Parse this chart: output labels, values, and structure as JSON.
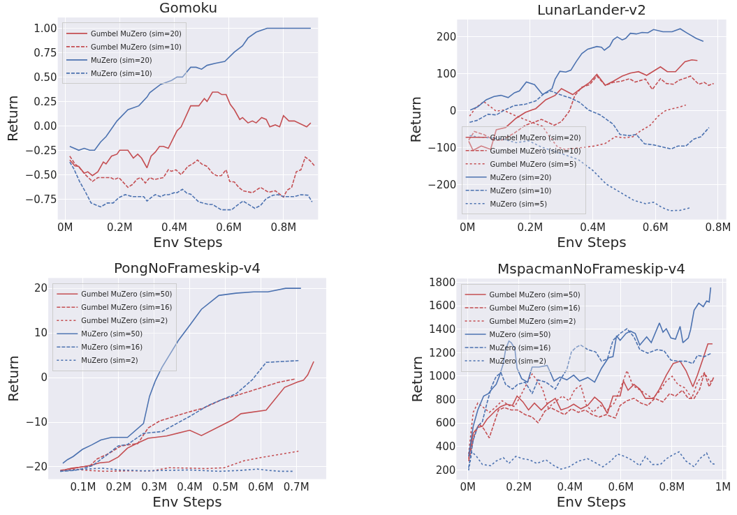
{
  "chart_data": [
    {
      "type": "line",
      "title": "Gomoku",
      "xlabel": "Env Steps",
      "ylabel": "Return",
      "grid": true,
      "legend": "top left",
      "xlim": [
        -0.027,
        0.927
      ],
      "ylim": [
        -0.96,
        1.11
      ],
      "xticks": [
        {
          "value": 0,
          "label": "0M"
        },
        {
          "value": 0.2,
          "label": "0.2M"
        },
        {
          "value": 0.4,
          "label": "0.4M"
        },
        {
          "value": 0.6,
          "label": "0.6M"
        },
        {
          "value": 0.8,
          "label": "0.8M"
        }
      ],
      "yticks": [
        {
          "value": -0.75,
          "label": "−0.75"
        },
        {
          "value": -0.5,
          "label": "−0.50"
        },
        {
          "value": -0.25,
          "label": "−0.25"
        },
        {
          "value": 0,
          "label": "0.00"
        },
        {
          "value": 0.25,
          "label": "0.25"
        },
        {
          "value": 0.5,
          "label": "0.50"
        },
        {
          "value": 0.75,
          "label": "0.75"
        },
        {
          "value": 1,
          "label": "1.00"
        }
      ],
      "series": [
        {
          "name": "Gumbel MuZero (sim=20)",
          "color": "#c44e52",
          "line_style": "solid",
          "x": [
            0.017,
            0.036,
            0.05,
            0.07,
            0.083,
            0.1,
            0.12,
            0.14,
            0.15,
            0.17,
            0.19,
            0.2,
            0.23,
            0.25,
            0.266,
            0.28,
            0.3,
            0.315,
            0.33,
            0.346,
            0.36,
            0.378,
            0.41,
            0.425,
            0.46,
            0.49,
            0.51,
            0.52,
            0.54,
            0.56,
            0.574,
            0.59,
            0.605,
            0.62,
            0.64,
            0.65,
            0.67,
            0.686,
            0.7,
            0.72,
            0.737,
            0.75,
            0.77,
            0.786,
            0.8,
            0.82,
            0.84,
            0.885,
            0.9
          ],
          "values": [
            -0.35,
            -0.41,
            -0.415,
            -0.485,
            -0.47,
            -0.51,
            -0.47,
            -0.37,
            -0.39,
            -0.31,
            -0.29,
            -0.25,
            -0.25,
            -0.33,
            -0.29,
            -0.33,
            -0.43,
            -0.31,
            -0.27,
            -0.21,
            -0.21,
            -0.23,
            -0.05,
            -0.01,
            0.205,
            0.205,
            0.28,
            0.25,
            0.345,
            0.345,
            0.32,
            0.32,
            0.22,
            0.165,
            0.065,
            0.085,
            0.03,
            0.05,
            0.03,
            0.085,
            0.065,
            -0.01,
            0.01,
            -0.01,
            0.105,
            0.05,
            0.05,
            -0.01,
            0.03
          ]
        },
        {
          "name": "Gumbel MuZero (sim=10)",
          "color": "#c44e52",
          "line_style": "dashed",
          "x": [
            0.017,
            0.036,
            0.053,
            0.074,
            0.1,
            0.12,
            0.167,
            0.18,
            0.197,
            0.23,
            0.247,
            0.264,
            0.277,
            0.294,
            0.31,
            0.327,
            0.36,
            0.378,
            0.39,
            0.406,
            0.425,
            0.45,
            0.467,
            0.485,
            0.5,
            0.52,
            0.54,
            0.555,
            0.572,
            0.59,
            0.603,
            0.62,
            0.636,
            0.652,
            0.686,
            0.716,
            0.745,
            0.77,
            0.8,
            0.813,
            0.83,
            0.847,
            0.864,
            0.88,
            0.897,
            0.914
          ],
          "values": [
            -0.31,
            -0.39,
            -0.43,
            -0.5,
            -0.57,
            -0.53,
            -0.53,
            -0.55,
            -0.53,
            -0.63,
            -0.6,
            -0.545,
            -0.53,
            -0.585,
            -0.53,
            -0.55,
            -0.53,
            -0.45,
            -0.465,
            -0.45,
            -0.5,
            -0.415,
            -0.39,
            -0.35,
            -0.39,
            -0.415,
            -0.485,
            -0.51,
            -0.51,
            -0.45,
            -0.57,
            -0.575,
            -0.63,
            -0.665,
            -0.685,
            -0.63,
            -0.68,
            -0.665,
            -0.73,
            -0.66,
            -0.63,
            -0.47,
            -0.45,
            -0.32,
            -0.355,
            -0.41
          ]
        },
        {
          "name": "MuZero (sim=20)",
          "color": "#4c72b0",
          "line_style": "solid",
          "x": [
            0.017,
            0.05,
            0.07,
            0.09,
            0.108,
            0.13,
            0.15,
            0.19,
            0.23,
            0.27,
            0.3,
            0.31,
            0.35,
            0.39,
            0.41,
            0.43,
            0.46,
            0.48,
            0.5,
            0.52,
            0.55,
            0.585,
            0.62,
            0.65,
            0.67,
            0.7,
            0.74,
            0.9
          ],
          "values": [
            -0.21,
            -0.25,
            -0.23,
            -0.25,
            -0.25,
            -0.165,
            -0.11,
            0.05,
            0.165,
            0.205,
            0.295,
            0.34,
            0.425,
            0.465,
            0.5,
            0.5,
            0.6,
            0.6,
            0.58,
            0.62,
            0.64,
            0.66,
            0.755,
            0.82,
            0.9,
            0.96,
            1.0,
            1.0
          ]
        },
        {
          "name": "MuZero (sim=10)",
          "color": "#4c72b0",
          "line_style": "dashed",
          "x": [
            0.017,
            0.032,
            0.053,
            0.074,
            0.095,
            0.13,
            0.155,
            0.176,
            0.197,
            0.22,
            0.247,
            0.288,
            0.3,
            0.315,
            0.33,
            0.35,
            0.365,
            0.38,
            0.4,
            0.41,
            0.43,
            0.446,
            0.46,
            0.49,
            0.525,
            0.54,
            0.572,
            0.61,
            0.63,
            0.652,
            0.678,
            0.695,
            0.716,
            0.737,
            0.762,
            0.78,
            0.8,
            0.84,
            0.864,
            0.89,
            0.905
          ],
          "values": [
            -0.37,
            -0.44,
            -0.57,
            -0.675,
            -0.79,
            -0.83,
            -0.79,
            -0.79,
            -0.735,
            -0.705,
            -0.725,
            -0.725,
            -0.77,
            -0.735,
            -0.705,
            -0.725,
            -0.705,
            -0.705,
            -0.685,
            -0.685,
            -0.65,
            -0.69,
            -0.7,
            -0.78,
            -0.805,
            -0.805,
            -0.86,
            -0.86,
            -0.815,
            -0.77,
            -0.815,
            -0.845,
            -0.815,
            -0.745,
            -0.71,
            -0.705,
            -0.725,
            -0.725,
            -0.705,
            -0.71,
            -0.78
          ]
        }
      ]
    },
    {
      "type": "line",
      "title": "LunarLander-v2",
      "xlabel": "Env Steps",
      "ylabel": "Return",
      "grid": true,
      "legend": "bottom left",
      "xlim": [
        -0.033,
        0.826
      ],
      "ylim": [
        -294,
        247
      ],
      "xticks": [
        {
          "value": 0,
          "label": "0M"
        },
        {
          "value": 0.2,
          "label": "0.2M"
        },
        {
          "value": 0.4,
          "label": "0.4M"
        },
        {
          "value": 0.6,
          "label": "0.6M"
        },
        {
          "value": 0.8,
          "label": "0.8M"
        }
      ],
      "yticks": [
        {
          "value": -200,
          "label": "−200"
        },
        {
          "value": -100,
          "label": "−100"
        },
        0,
        100,
        200
      ],
      "series": [
        {
          "name": "Gumbel MuZero (sim=20)",
          "color": "#c44e52",
          "line_style": "solid",
          "x": [
            0.004,
            0.018,
            0.044,
            0.074,
            0.092,
            0.122,
            0.155,
            0.185,
            0.218,
            0.25,
            0.28,
            0.3,
            0.336,
            0.365,
            0.39,
            0.413,
            0.44,
            0.465,
            0.494,
            0.52,
            0.546,
            0.572,
            0.616,
            0.638,
            0.664,
            0.694,
            0.716,
            0.734
          ],
          "values": [
            -82,
            -107,
            -95,
            -104,
            -51,
            -45,
            -20,
            -4,
            6,
            30,
            42,
            60,
            44,
            62,
            77,
            99,
            69,
            80,
            94,
            102,
            106,
            96,
            119,
            106,
            106,
            133,
            138,
            136
          ]
        },
        {
          "name": "Gumbel MuZero (sim=10)",
          "color": "#c44e52",
          "line_style": "dashed",
          "x": [
            0.004,
            0.022,
            0.052,
            0.085,
            0.11,
            0.148,
            0.185,
            0.218,
            0.236,
            0.277,
            0.3,
            0.325,
            0.343,
            0.365,
            0.39,
            0.413,
            0.44,
            0.465,
            0.49,
            0.517,
            0.535,
            0.568,
            0.59,
            0.616,
            0.635,
            0.657,
            0.675,
            0.697,
            0.712,
            0.738,
            0.756,
            0.77,
            0.786
          ],
          "values": [
            -79,
            -56,
            -64,
            -79,
            -79,
            -61,
            -39,
            -29,
            -23,
            -39,
            -29,
            -1,
            42,
            64,
            71,
            94,
            69,
            77,
            80,
            87,
            78,
            86,
            58,
            87,
            74,
            72,
            83,
            89,
            94,
            72,
            77,
            69,
            74
          ]
        },
        {
          "name": "Gumbel MuZero (sim=5)",
          "color": "#c44e52",
          "line_style": "dotted",
          "x": [
            0.007,
            0.026,
            0.052,
            0.074,
            0.092,
            0.114,
            0.148,
            0.185,
            0.24,
            0.262,
            0.288,
            0.31,
            0.369,
            0.406,
            0.44,
            0.472,
            0.502,
            0.528,
            0.553,
            0.583,
            0.609,
            0.631,
            0.65,
            0.672,
            0.697
          ],
          "values": [
            -14,
            8,
            25,
            11,
            -1,
            2,
            -11,
            -24,
            -42,
            -70,
            -98,
            -104,
            -99,
            -95,
            -88,
            -70,
            -73,
            -70,
            -54,
            -39,
            -14,
            0,
            5,
            9,
            16
          ]
        },
        {
          "name": "MuZero (sim=20)",
          "color": "#4c72b0",
          "line_style": "solid",
          "x": [
            0.009,
            0.033,
            0.06,
            0.085,
            0.107,
            0.13,
            0.15,
            0.166,
            0.188,
            0.214,
            0.24,
            0.27,
            0.28,
            0.295,
            0.314,
            0.33,
            0.347,
            0.365,
            0.384,
            0.413,
            0.428,
            0.437,
            0.454,
            0.465,
            0.478,
            0.494,
            0.505,
            0.52,
            0.539,
            0.557,
            0.576,
            0.594,
            0.624,
            0.653,
            0.679,
            0.7,
            0.73,
            0.753
          ],
          "values": [
            2,
            11,
            30,
            39,
            42,
            36,
            49,
            54,
            78,
            71,
            44,
            60,
            86,
            107,
            105,
            110,
            133,
            155,
            167,
            174,
            172,
            164,
            175,
            192,
            200,
            192,
            196,
            210,
            208,
            212,
            211,
            220,
            214,
            214,
            222,
            211,
            196,
            188
          ]
        },
        {
          "name": "MuZero (sim=10)",
          "color": "#4c72b0",
          "line_style": "dashed",
          "x": [
            0.007,
            0.03,
            0.066,
            0.092,
            0.114,
            0.148,
            0.185,
            0.218,
            0.244,
            0.266,
            0.295,
            0.328,
            0.358,
            0.387,
            0.424,
            0.465,
            0.487,
            0.517,
            0.539,
            0.565,
            0.594,
            0.624,
            0.65,
            0.672,
            0.697,
            0.723,
            0.745,
            0.771
          ],
          "values": [
            -31,
            -26,
            -9,
            -11,
            0,
            14,
            18,
            27,
            46,
            54,
            44,
            35,
            23,
            2,
            -11,
            -36,
            -64,
            -67,
            -64,
            -89,
            -92,
            -98,
            -103,
            -95,
            -95,
            -76,
            -70,
            -45
          ]
        },
        {
          "name": "MuZero (sim=5)",
          "color": "#4c72b0",
          "line_style": "dotted",
          "x": [
            0.007,
            0.037,
            0.074,
            0.11,
            0.155,
            0.196,
            0.236,
            0.295,
            0.354,
            0.4,
            0.443,
            0.487,
            0.531,
            0.568,
            0.594,
            0.62,
            0.646,
            0.679,
            0.712
          ],
          "values": [
            -67,
            -71,
            -73,
            -76,
            -86,
            -81,
            -98,
            -114,
            -132,
            -161,
            -198,
            -220,
            -242,
            -251,
            -247,
            -261,
            -270,
            -269,
            -262
          ]
        }
      ]
    },
    {
      "type": "line",
      "title": "PongNoFrameskip-v4",
      "xlabel": "Env Steps",
      "ylabel": "Return",
      "grid": true,
      "legend": "top left",
      "xlim": [
        0.002,
        0.784
      ],
      "ylim": [
        -22.75,
        22.3
      ],
      "xticks": [
        {
          "value": 0.1,
          "label": "0.1M"
        },
        {
          "value": 0.2,
          "label": "0.2M"
        },
        {
          "value": 0.3,
          "label": "0.3M"
        },
        {
          "value": 0.4,
          "label": "0.4M"
        },
        {
          "value": 0.5,
          "label": "0.5M"
        },
        {
          "value": 0.6,
          "label": "0.6M"
        },
        {
          "value": 0.7,
          "label": "0.7M"
        }
      ],
      "yticks": [
        {
          "value": -20,
          "label": "−20"
        },
        {
          "value": -10,
          "label": "−10"
        },
        0,
        10,
        20
      ],
      "series": [
        {
          "name": "Gumbel MuZero (sim=50)",
          "color": "#c44e52",
          "line_style": "solid",
          "x": [
            0.036,
            0.069,
            0.1,
            0.12,
            0.147,
            0.173,
            0.199,
            0.225,
            0.25,
            0.283,
            0.335,
            0.4,
            0.433,
            0.485,
            0.52,
            0.544,
            0.615,
            0.667,
            0.703,
            0.72,
            0.732,
            0.749
          ],
          "values": [
            -20.9,
            -20.3,
            -20.0,
            -19.7,
            -19.1,
            -18.9,
            -17.8,
            -15.8,
            -14.8,
            -13.6,
            -13.1,
            -11.8,
            -13.0,
            -10.9,
            -9.5,
            -8.1,
            -7.3,
            -2.2,
            -1.0,
            -0.6,
            0.6,
            3.6
          ]
        },
        {
          "name": "Gumbel MuZero (sim=16)",
          "color": "#c44e52",
          "line_style": "dashed",
          "x": [
            0.036,
            0.075,
            0.12,
            0.14,
            0.173,
            0.205,
            0.225,
            0.254,
            0.283,
            0.316,
            0.394,
            0.44,
            0.492,
            0.544,
            0.596,
            0.648,
            0.697
          ],
          "values": [
            -20.8,
            -20.3,
            -19.7,
            -18.2,
            -17.0,
            -15.4,
            -15.1,
            -14.8,
            -11.3,
            -9.7,
            -7.8,
            -6.8,
            -4.9,
            -3.7,
            -2.4,
            -1.1,
            -0.3
          ]
        },
        {
          "name": "Gumbel MuZero (sim=2)",
          "color": "#c44e52",
          "line_style": "dotted",
          "x": [
            0.036,
            0.075,
            0.114,
            0.16,
            0.225,
            0.296,
            0.342,
            0.4,
            0.446,
            0.498,
            0.55,
            0.602,
            0.654,
            0.706
          ],
          "values": [
            -20.9,
            -20.5,
            -20.8,
            -21.0,
            -20.9,
            -20.9,
            -20.2,
            -20.3,
            -20.4,
            -20.2,
            -18.7,
            -17.9,
            -17.2,
            -16.5
          ]
        },
        {
          "name": "MuZero (sim=50)",
          "color": "#4c72b0",
          "line_style": "solid",
          "x": [
            0.043,
            0.056,
            0.072,
            0.098,
            0.124,
            0.15,
            0.18,
            0.225,
            0.27,
            0.287,
            0.303,
            0.322,
            0.368,
            0.4,
            0.433,
            0.482,
            0.53,
            0.58,
            0.62,
            0.67,
            0.713
          ],
          "values": [
            -19.2,
            -18.4,
            -17.7,
            -16.1,
            -15.1,
            -14.0,
            -13.4,
            -13.4,
            -10.3,
            -4.2,
            -0.8,
            2.3,
            8.3,
            11.7,
            15.3,
            18.4,
            18.9,
            19.2,
            19.2,
            20.0,
            20.0
          ]
        },
        {
          "name": "MuZero (sim=16)",
          "color": "#4c72b0",
          "line_style": "dashed",
          "x": [
            0.036,
            0.075,
            0.1,
            0.127,
            0.166,
            0.199,
            0.225,
            0.27,
            0.322,
            0.4,
            0.453,
            0.492,
            0.531,
            0.576,
            0.615,
            0.661,
            0.706
          ],
          "values": [
            -21.0,
            -20.8,
            -20.4,
            -19.7,
            -17.4,
            -15.3,
            -15.0,
            -12.5,
            -12.1,
            -8.7,
            -6.2,
            -4.9,
            -3.6,
            -0.5,
            3.4,
            3.6,
            3.8
          ]
        },
        {
          "name": "MuZero (sim=2)",
          "color": "#4c72b0",
          "line_style": "dotted",
          "x": [
            0.036,
            0.108,
            0.153,
            0.205,
            0.27,
            0.335,
            0.4,
            0.453,
            0.485,
            0.544,
            0.59,
            0.622,
            0.654,
            0.69
          ],
          "values": [
            -21.0,
            -20.5,
            -20.3,
            -20.7,
            -20.9,
            -20.8,
            -20.7,
            -20.9,
            -21.0,
            -20.8,
            -20.5,
            -20.8,
            -21.0,
            -21.0
          ]
        }
      ]
    },
    {
      "type": "line",
      "title": "MspacmanNoFrameskip-v4",
      "xlabel": "Env Steps",
      "ylabel": "Return",
      "grid": true,
      "legend": "top left",
      "xlim": [
        -0.045,
        1.013
      ],
      "ylim": [
        117,
        1832
      ],
      "xticks": [
        {
          "value": 0,
          "label": "0M"
        },
        {
          "value": 0.2,
          "label": "0.2M"
        },
        {
          "value": 0.4,
          "label": "0.4M"
        },
        {
          "value": 0.6,
          "label": "0.6M"
        },
        {
          "value": 0.8,
          "label": "0.8M"
        },
        {
          "value": 1,
          "label": "1M"
        }
      ],
      "yticks": [
        200,
        400,
        600,
        800,
        1000,
        1200,
        1400,
        1600,
        1800
      ],
      "series": [
        {
          "name": "Gumbel MuZero (sim=50)",
          "color": "#c44e52",
          "line_style": "solid",
          "x": [
            0.003,
            0.021,
            0.039,
            0.057,
            0.075,
            0.093,
            0.111,
            0.13,
            0.152,
            0.175,
            0.193,
            0.216,
            0.238,
            0.261,
            0.288,
            0.315,
            0.343,
            0.365,
            0.392,
            0.415,
            0.443,
            0.47,
            0.497,
            0.524,
            0.547,
            0.569,
            0.597,
            0.61,
            0.628,
            0.651,
            0.674,
            0.696,
            0.728,
            0.751,
            0.778,
            0.805,
            0.832,
            0.855,
            0.882,
            0.9,
            0.923,
            0.941,
            0.959
          ],
          "values": [
            295,
            513,
            562,
            572,
            632,
            671,
            711,
            741,
            760,
            750,
            830,
            780,
            711,
            770,
            711,
            770,
            810,
            711,
            731,
            760,
            721,
            750,
            820,
            770,
            681,
            830,
            830,
            958,
            879,
            929,
            889,
            810,
            810,
            889,
            1008,
            1107,
            1127,
            1047,
            909,
            1008,
            1156,
            1275,
            1275
          ]
        },
        {
          "name": "Gumbel MuZero (sim=16)",
          "color": "#c44e52",
          "line_style": "dashed",
          "x": [
            0.003,
            0.025,
            0.044,
            0.062,
            0.084,
            0.102,
            0.12,
            0.143,
            0.17,
            0.195,
            0.225,
            0.252,
            0.275,
            0.302,
            0.324,
            0.352,
            0.379,
            0.406,
            0.433,
            0.46,
            0.488,
            0.515,
            0.542,
            0.578,
            0.597,
            0.624,
            0.651,
            0.678,
            0.705,
            0.733,
            0.764,
            0.791,
            0.814,
            0.841,
            0.864,
            0.887,
            0.909,
            0.927,
            0.946,
            0.964
          ],
          "values": [
            275,
            493,
            592,
            552,
            473,
            592,
            711,
            731,
            711,
            711,
            671,
            651,
            602,
            701,
            731,
            701,
            671,
            721,
            691,
            711,
            671,
            651,
            671,
            642,
            750,
            790,
            810,
            770,
            750,
            810,
            780,
            850,
            830,
            879,
            810,
            810,
            889,
            1028,
            909,
            988
          ]
        },
        {
          "name": "Gumbel MuZero (sim=2)",
          "color": "#c44e52",
          "line_style": "dotted",
          "x": [
            0.003,
            0.021,
            0.039,
            0.062,
            0.084,
            0.107,
            0.134,
            0.161,
            0.184,
            0.211,
            0.234,
            0.252,
            0.27,
            0.293,
            0.315,
            0.343,
            0.37,
            0.397,
            0.42,
            0.443,
            0.465,
            0.492,
            0.519,
            0.547,
            0.574,
            0.601,
            0.624,
            0.647,
            0.669,
            0.696,
            0.724,
            0.751,
            0.778,
            0.801,
            0.823,
            0.851,
            0.878,
            0.9,
            0.927,
            0.95,
            0.964
          ],
          "values": [
            335,
            691,
            770,
            731,
            691,
            731,
            790,
            750,
            741,
            850,
            948,
            1018,
            968,
            889,
            731,
            780,
            830,
            790,
            889,
            919,
            750,
            691,
            750,
            711,
            770,
            909,
            1047,
            919,
            889,
            850,
            810,
            870,
            958,
            998,
            929,
            899,
            810,
            948,
            1028,
            948,
            988
          ]
        },
        {
          "name": "MuZero (sim=50)",
          "color": "#4c72b0",
          "line_style": "solid",
          "x": [
            0.003,
            0.021,
            0.039,
            0.062,
            0.08,
            0.098,
            0.111,
            0.125,
            0.139,
            0.148,
            0.161,
            0.17,
            0.184,
            0.193,
            0.211,
            0.234,
            0.252,
            0.279,
            0.311,
            0.324,
            0.338,
            0.361,
            0.388,
            0.415,
            0.438,
            0.47,
            0.497,
            0.524,
            0.551,
            0.569,
            0.583,
            0.597,
            0.62,
            0.637,
            0.656,
            0.674,
            0.701,
            0.719,
            0.751,
            0.765,
            0.778,
            0.796,
            0.814,
            0.832,
            0.843,
            0.864,
            0.873,
            0.887,
            0.905,
            0.923,
            0.936,
            0.946,
            0.952
          ],
          "values": [
            315,
            572,
            711,
            830,
            850,
            899,
            929,
            1008,
            1107,
            1226,
            1299,
            1285,
            1236,
            1067,
            978,
            948,
            1077,
            1077,
            1091,
            1028,
            958,
            992,
            968,
            1008,
            958,
            988,
            948,
            1067,
            1156,
            1166,
            1344,
            1305,
            1364,
            1384,
            1364,
            1265,
            1334,
            1285,
            1453,
            1374,
            1404,
            1325,
            1315,
            1424,
            1285,
            1325,
            1394,
            1562,
            1622,
            1592,
            1641,
            1632,
            1756
          ]
        },
        {
          "name": "MuZero (sim=16)",
          "color": "#4c72b0",
          "line_style": "dashed",
          "x": [
            0.003,
            0.021,
            0.039,
            0.057,
            0.075,
            0.093,
            0.111,
            0.13,
            0.148,
            0.175,
            0.195,
            0.225,
            0.252,
            0.275,
            0.306,
            0.343,
            0.365,
            0.388,
            0.406,
            0.424,
            0.442,
            0.47,
            0.501,
            0.524,
            0.547,
            0.569,
            0.597,
            0.624,
            0.651,
            0.674,
            0.705,
            0.742,
            0.769,
            0.796,
            0.823,
            0.855,
            0.882,
            0.9,
            0.927,
            0.955
          ],
          "values": [
            216,
            453,
            572,
            612,
            770,
            909,
            998,
            1028,
            929,
            889,
            929,
            948,
            850,
            968,
            948,
            889,
            978,
            1057,
            1206,
            1245,
            1265,
            1226,
            1206,
            1127,
            1146,
            1305,
            1364,
            1404,
            1334,
            1226,
            1196,
            1226,
            1216,
            1136,
            1127,
            1127,
            1107,
            1176,
            1166,
            1196
          ]
        },
        {
          "name": "MuZero (sim=2)",
          "color": "#4c72b0",
          "line_style": "dotted",
          "x": [
            0.003,
            0.016,
            0.034,
            0.057,
            0.089,
            0.111,
            0.139,
            0.161,
            0.188,
            0.216,
            0.243,
            0.27,
            0.306,
            0.338,
            0.365,
            0.397,
            0.433,
            0.47,
            0.497,
            0.529,
            0.56,
            0.587,
            0.615,
            0.642,
            0.674,
            0.696,
            0.724,
            0.755,
            0.778,
            0.801,
            0.828,
            0.855,
            0.887,
            0.909,
            0.936,
            0.955,
            0.973
          ],
          "values": [
            196,
            354,
            315,
            246,
            236,
            275,
            305,
            255,
            315,
            295,
            285,
            255,
            285,
            236,
            206,
            226,
            275,
            295,
            265,
            226,
            275,
            335,
            315,
            285,
            236,
            315,
            246,
            246,
            295,
            325,
            354,
            275,
            226,
            295,
            344,
            255,
            246
          ]
        }
      ]
    }
  ]
}
